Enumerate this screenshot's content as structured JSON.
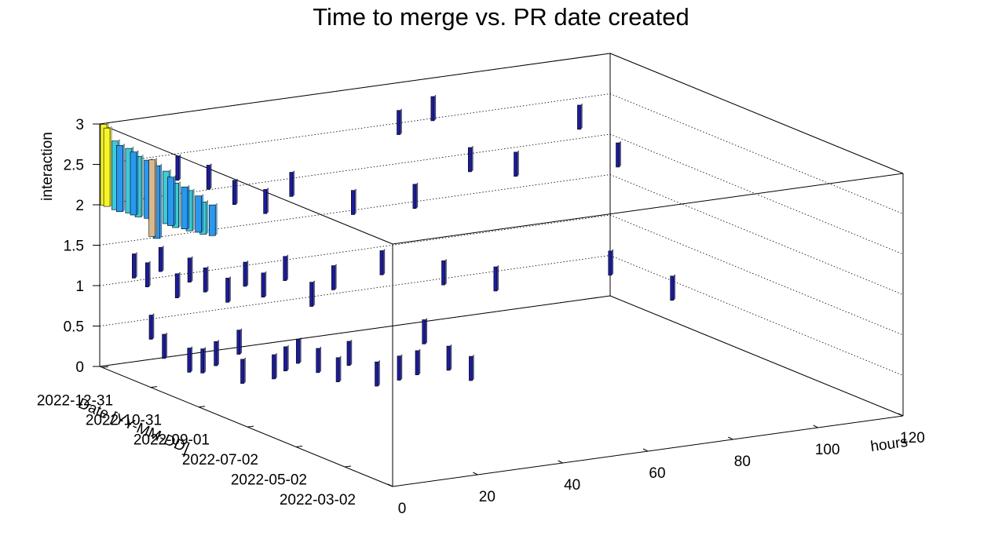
{
  "chart_data": {
    "type": "lego3d",
    "title": "Time to merge vs. PR date created",
    "xlabel": "hours",
    "ylabel": "Date [YY-MM-DD]",
    "zlabel": "interaction",
    "xlim": [
      0,
      120
    ],
    "xticks": [
      0,
      20,
      40,
      60,
      80,
      100,
      120
    ],
    "ylim": [
      0,
      367
    ],
    "yticks": [
      {
        "value": 60,
        "label": "2022-03-02"
      },
      {
        "value": 121,
        "label": "2022-05-02"
      },
      {
        "value": 182,
        "label": "2022-07-02"
      },
      {
        "value": 243,
        "label": "2022-09-01"
      },
      {
        "value": 303,
        "label": "2022-10-31"
      },
      {
        "value": 364,
        "label": "2022-12-31"
      }
    ],
    "zlim": [
      0,
      3
    ],
    "zticks": [
      0,
      0.5,
      1,
      1.5,
      2,
      2.5,
      3
    ],
    "grid": true,
    "series": [
      {
        "color": "#1c1c9c",
        "x": [
          4,
          3,
          6,
          8,
          10,
          12,
          14,
          18,
          20,
          22,
          25,
          28,
          30,
          33,
          36,
          38,
          42,
          45,
          49,
          2,
          4,
          6,
          8,
          10,
          12,
          15,
          18,
          20,
          24,
          28,
          32,
          40,
          50,
          60,
          80,
          94,
          10,
          15,
          20,
          25,
          30,
          40,
          50,
          65,
          70,
          72,
          85,
          99,
          100
        ],
        "y": [
          310,
          321,
          289,
          283,
          277,
          259,
          265,
          247,
          243,
          238,
          229,
          220,
          217,
          198,
          186,
          174,
          156,
          144,
          224,
          337,
          331,
          325,
          315,
          310,
          301,
          289,
          283,
          271,
          265,
          253,
          247,
          229,
          205,
          193,
          156,
          153,
          325,
          313,
          307,
          295,
          289,
          265,
          241,
          341,
          325,
          289,
          301,
          296,
          253
        ],
        "values": [
          0.3,
          0.5,
          0.2,
          0.2,
          0.3,
          0.5,
          0.1,
          0.2,
          0.3,
          0.4,
          0.3,
          0.2,
          0.4,
          0.2,
          0.3,
          0.4,
          0.5,
          0.4,
          0.5,
          1.2,
          1.1,
          1.3,
          1,
          1.2,
          1.1,
          1,
          1.2,
          1.1,
          1.3,
          1,
          1.2,
          1.4,
          1.3,
          1.2,
          1.4,
          1,
          2.4,
          2.3,
          2.1,
          2,
          2.2,
          2,
          2.1,
          2.5,
          2.7,
          2.2,
          2,
          2.5,
          2.2
        ]
      },
      {
        "color": "#f5f52a",
        "x": [
          0,
          0
        ],
        "y": [
          366,
          362
        ],
        "values": [
          2,
          2
        ],
        "z_top": [
          3,
          2.97
        ]
      },
      {
        "color": "#40c8d8",
        "x": [
          0,
          1,
          1,
          2,
          3,
          3,
          4,
          5
        ],
        "y": [
          352,
          340,
          328,
          316,
          304,
          292,
          280,
          268
        ],
        "values": [
          2,
          2,
          2,
          2,
          2,
          2,
          2,
          2
        ],
        "z_top": [
          2.85,
          2.8,
          2.75,
          2.7,
          2.65,
          2.55,
          2.5,
          2.4
        ]
      },
      {
        "color": "#2898f0",
        "x": [
          0,
          1,
          2,
          2,
          3,
          4,
          5,
          6
        ],
        "y": [
          346,
          334,
          322,
          310,
          298,
          286,
          274,
          262
        ],
        "values": [
          2,
          2,
          2,
          1.8,
          2,
          2,
          2,
          2
        ],
        "z_top": [
          2.82,
          2.78,
          2.72,
          2.7,
          2.6,
          2.52,
          2.45,
          2.38
        ]
      },
      {
        "color": "#d8b88c",
        "x": [
          2
        ],
        "y": [
          316
        ],
        "values": [
          1.8
        ],
        "z_top": [
          2.75
        ]
      }
    ]
  }
}
